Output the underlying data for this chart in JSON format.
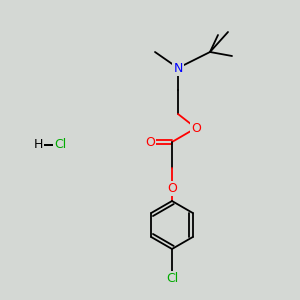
{
  "background_color": "#d4d8d4",
  "atom_colors": {
    "O": "#ff0000",
    "N": "#0000ff",
    "Cl": "#00aa00",
    "C": "#000000",
    "H": "#000000"
  },
  "figsize": [
    3.0,
    3.0
  ],
  "dpi": 100
}
